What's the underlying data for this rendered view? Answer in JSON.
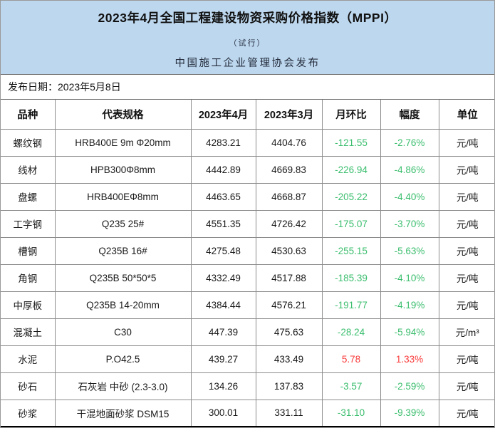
{
  "header": {
    "title": "2023年4月全国工程建设物资采购价格指数（MPPI）",
    "subtitle": "（试行）",
    "publisher": "中国施工企业管理协会发布",
    "bg_color": "#BDD7EE"
  },
  "date_row": {
    "text": "发布日期：2023年5月8日"
  },
  "table": {
    "columns": [
      "品种",
      "代表规格",
      "2023年4月",
      "2023年3月",
      "月环比",
      "幅度",
      "单位"
    ],
    "colors": {
      "down": "#3BBE6E",
      "up": "#FA3A3A",
      "default": "#1A1A1A"
    },
    "rows": [
      {
        "name": "螺纹钢",
        "spec": "HRB400E 9m Φ20mm",
        "apr": "4283.21",
        "mar": "4404.76",
        "change": "-121.55",
        "pct": "-2.76%",
        "unit": "元/吨",
        "trend": "down"
      },
      {
        "name": "线材",
        "spec": "HPB300Φ8mm",
        "apr": "4442.89",
        "mar": "4669.83",
        "change": "-226.94",
        "pct": "-4.86%",
        "unit": "元/吨",
        "trend": "down"
      },
      {
        "name": "盘螺",
        "spec": "HRB400EΦ8mm",
        "apr": "4463.65",
        "mar": "4668.87",
        "change": "-205.22",
        "pct": "-4.40%",
        "unit": "元/吨",
        "trend": "down"
      },
      {
        "name": "工字钢",
        "spec": "Q235 25#",
        "apr": "4551.35",
        "mar": "4726.42",
        "change": "-175.07",
        "pct": "-3.70%",
        "unit": "元/吨",
        "trend": "down"
      },
      {
        "name": "槽钢",
        "spec": "Q235B 16#",
        "apr": "4275.48",
        "mar": "4530.63",
        "change": "-255.15",
        "pct": "-5.63%",
        "unit": "元/吨",
        "trend": "down"
      },
      {
        "name": "角钢",
        "spec": "Q235B 50*50*5",
        "apr": "4332.49",
        "mar": "4517.88",
        "change": "-185.39",
        "pct": "-4.10%",
        "unit": "元/吨",
        "trend": "down"
      },
      {
        "name": "中厚板",
        "spec": "Q235B 14-20mm",
        "apr": "4384.44",
        "mar": "4576.21",
        "change": "-191.77",
        "pct": "-4.19%",
        "unit": "元/吨",
        "trend": "down"
      },
      {
        "name": "混凝土",
        "spec": "C30",
        "apr": "447.39",
        "mar": "475.63",
        "change": "-28.24",
        "pct": "-5.94%",
        "unit": "元/m³",
        "trend": "down"
      },
      {
        "name": "水泥",
        "spec": "P.O42.5",
        "apr": "439.27",
        "mar": "433.49",
        "change": "5.78",
        "pct": "1.33%",
        "unit": "元/吨",
        "trend": "up"
      },
      {
        "name": "砂石",
        "spec": "石灰岩 中砂 (2.3-3.0)",
        "apr": "134.26",
        "mar": "137.83",
        "change": "-3.57",
        "pct": "-2.59%",
        "unit": "元/吨",
        "trend": "down"
      },
      {
        "name": "砂浆",
        "spec": "干混地面砂浆 DSM15",
        "apr": "300.01",
        "mar": "331.11",
        "change": "-31.10",
        "pct": "-9.39%",
        "unit": "元/吨",
        "trend": "down"
      }
    ]
  }
}
